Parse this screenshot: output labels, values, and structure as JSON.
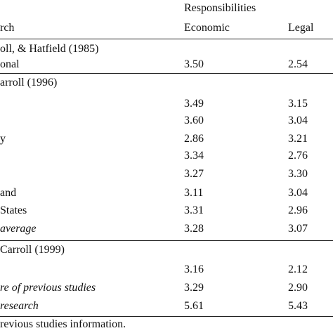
{
  "header": {
    "group": "Responsibilities",
    "columns": [
      "rch",
      "Economic",
      "Legal"
    ]
  },
  "sections": [
    {
      "title": "oll, & Hatfield (1985)",
      "rows": [
        {
          "label": "onal",
          "values": [
            "3.50",
            "2.54"
          ]
        }
      ]
    },
    {
      "title": "arroll (1996)",
      "rows": [
        {
          "values": [
            "3.49",
            "3.15"
          ]
        },
        {
          "values": [
            "3.60",
            "3.04"
          ]
        },
        {
          "label": "y",
          "values": [
            "2.86",
            "3.21"
          ]
        },
        {
          "values": [
            "3.34",
            "2.76"
          ]
        },
        {
          "values": [
            "3.27",
            "3.30"
          ]
        },
        {
          "label": "and",
          "values": [
            "3.11",
            "3.04"
          ]
        },
        {
          "label": "States",
          "values": [
            "3.31",
            "2.96"
          ]
        },
        {
          "label": "average",
          "italic": true,
          "values": [
            "3.28",
            "3.07"
          ]
        }
      ]
    },
    {
      "title": "Carroll (1999)",
      "rows": [
        {
          "values": [
            "3.16",
            "2.12"
          ]
        },
        {
          "label": "re of previous studies",
          "italic": true,
          "values": [
            "3.29",
            "2.90"
          ]
        },
        {
          "label": "research",
          "italic": true,
          "values": [
            "5.61",
            "5.43"
          ]
        }
      ]
    }
  ],
  "footnote": "revious studies information."
}
